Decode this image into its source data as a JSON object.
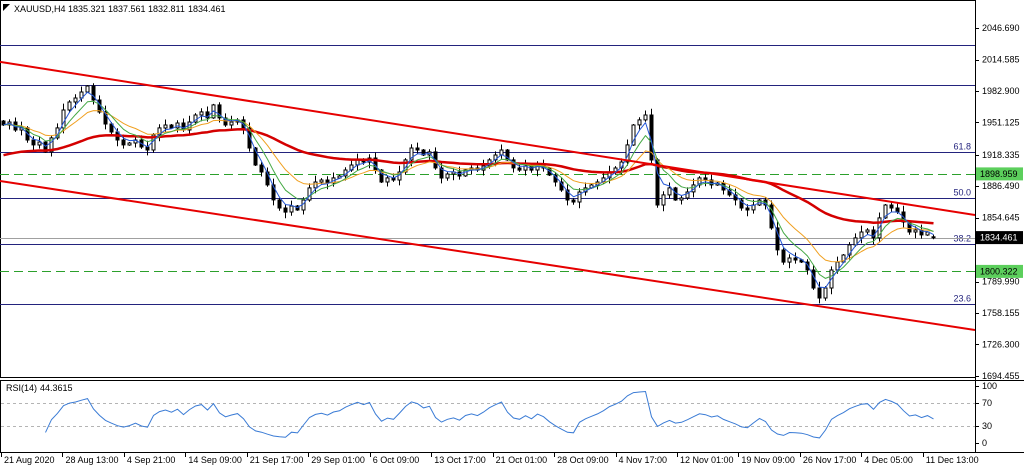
{
  "chart_data": {
    "type": "bar",
    "title": "XAUUSD,H4",
    "last_bar": {
      "open": 1835.321,
      "high": 1837.561,
      "low": 1832.811,
      "close": 1834.461
    },
    "ylim": [
      1693.4,
      2075.0
    ],
    "close": [
      1948.5,
      1951.5,
      1943.4,
      1945.5,
      1933.3,
      1928.3,
      1931.3,
      1921.2,
      1935.4,
      1945.5,
      1963.7,
      1971.8,
      1975.8,
      1981.9,
      1988.0,
      1973.8,
      1961.7,
      1949.5,
      1941.4,
      1933.3,
      1928.3,
      1930.3,
      1933.3,
      1926.2,
      1923.2,
      1938.4,
      1945.5,
      1948.5,
      1945.5,
      1950.5,
      1943.4,
      1951.5,
      1958.6,
      1961.7,
      1955.6,
      1968.8,
      1955.6,
      1948.5,
      1951.5,
      1953.6,
      1945.5,
      1925.2,
      1908.0,
      1900.9,
      1887.8,
      1872.6,
      1864.5,
      1860.4,
      1866.5,
      1862.5,
      1872.6,
      1884.8,
      1890.8,
      1892.8,
      1889.8,
      1894.9,
      1896.9,
      1902.9,
      1908.0,
      1913.1,
      1911.0,
      1915.1,
      1902.9,
      1890.8,
      1894.9,
      1892.8,
      1900.9,
      1913.1,
      1925.2,
      1923.2,
      1918.1,
      1921.2,
      1905.0,
      1894.9,
      1898.9,
      1900.9,
      1896.9,
      1902.9,
      1905.0,
      1902.9,
      1907.0,
      1913.1,
      1918.1,
      1923.2,
      1913.1,
      1905.0,
      1902.9,
      1907.0,
      1902.9,
      1908.0,
      1905.0,
      1897.9,
      1890.8,
      1882.7,
      1872.6,
      1870.6,
      1880.7,
      1884.8,
      1887.8,
      1890.8,
      1894.9,
      1900.9,
      1905.0,
      1911.0,
      1928.3,
      1948.5,
      1953.6,
      1958.6,
      1913.1,
      1867.5,
      1877.7,
      1884.8,
      1872.6,
      1874.6,
      1880.7,
      1887.8,
      1894.9,
      1892.8,
      1887.8,
      1889.8,
      1882.7,
      1877.7,
      1872.6,
      1864.5,
      1862.5,
      1867.5,
      1872.6,
      1867.5,
      1844.3,
      1822.0,
      1809.8,
      1813.9,
      1811.9,
      1809.8,
      1801.7,
      1783.5,
      1773.4,
      1783.5,
      1801.7,
      1809.8,
      1816.9,
      1827.1,
      1834.2,
      1840.2,
      1842.2,
      1834.2,
      1854.4,
      1867.5,
      1864.5,
      1860.4,
      1850.3,
      1840.2,
      1842.2,
      1837.2,
      1840.2,
      1834.461
    ],
    "price_ticks": [
      "2046.690",
      "2014.585",
      "1982.900",
      "1951.125",
      "1918.335",
      "1886.490",
      "1854.645",
      "1789.990",
      "1758.155",
      "1726.300",
      "1694.455"
    ],
    "time_labels": [
      "21 Aug 2020",
      "28 Aug 13:00",
      "4 Sep 21:00",
      "14 Sep 09:00",
      "21 Sep 17:00",
      "29 Sep 01:00",
      "6 Oct 09:00",
      "13 Oct 17:00",
      "21 Oct 01:00",
      "28 Oct 09:00",
      "4 Nov 17:00",
      "12 Nov 01:00",
      "19 Nov 09:00",
      "26 Nov 17:00",
      "4 Dec 05:00",
      "11 Dec 13:00"
    ],
    "fib_levels": [
      {
        "price": 2029.5
      },
      {
        "price": 1989.0
      },
      {
        "label": "61.8",
        "price": 1921.2
      },
      {
        "label": "50.0",
        "price": 1874.6
      },
      {
        "label": "38.2",
        "price": 1828.1
      },
      {
        "label": "23.6",
        "price": 1767.3
      }
    ],
    "support_levels": [
      1898.959,
      1800.322
    ],
    "channel": [
      {
        "start_price": 2012.3,
        "end_price": 1857.4
      },
      {
        "start_price": 1891.8,
        "end_price": 1741.0
      }
    ],
    "rsi": {
      "label": "RSI(14)",
      "value": "44.3615",
      "ticks": [
        "100",
        "70",
        "30",
        "0"
      ],
      "levels": [
        70,
        30
      ],
      "ylim": [
        -15.8,
        108.8
      ]
    },
    "colors": {
      "fib": "#23237d",
      "level": "#2ca02c",
      "level_label": "#5ccf5c",
      "current": "#a0a0a0",
      "channel": "#e60000",
      "ma_slow": "#d40000",
      "ma_fast": "#2457d6",
      "ma_mid": "#43a843",
      "ma_long": "#f0a020",
      "rsi": "#3a7bd5",
      "bull": "#ffffff",
      "bear": "#000000"
    }
  }
}
